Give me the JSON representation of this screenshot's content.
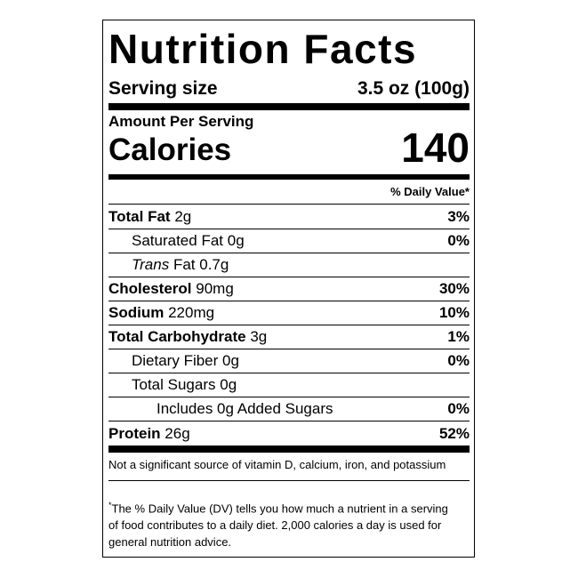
{
  "title": "Nutrition Facts",
  "serving": {
    "label": "Serving size",
    "value": "3.5 oz (100g)"
  },
  "calories": {
    "heading": "Amount Per Serving",
    "label": "Calories",
    "value": "140"
  },
  "dv_heading": "% Daily Value*",
  "rows": [
    {
      "label": "Total Fat",
      "amount": "2g",
      "dv": "3%"
    },
    {
      "label": "Saturated Fat",
      "amount": "0g",
      "dv": "0%"
    },
    {
      "label_italic": "Trans",
      "label": "Fat",
      "amount": "0.7g"
    },
    {
      "label": "Cholesterol",
      "amount": "90mg",
      "dv": "30%"
    },
    {
      "label": "Sodium",
      "amount": "220mg",
      "dv": "10%"
    },
    {
      "label": "Total Carbohydrate",
      "amount": "3g",
      "dv": "1%"
    },
    {
      "label": "Dietary Fiber",
      "amount": "0g",
      "dv": "0%"
    },
    {
      "label": "Total Sugars",
      "amount": "0g"
    },
    {
      "label": "Includes 0g Added Sugars",
      "dv": "0%"
    },
    {
      "label": "Protein",
      "amount": "26g",
      "dv": "52%"
    }
  ],
  "note": "Not a significant source of vitamin D, calcium, iron, and potassium",
  "footnote": {
    "marker": "*",
    "text": "The % Daily Value (DV) tells you how much a nutrient in a serving of food contributes to a daily diet. 2,000 calories a day is used for general nutrition advice."
  }
}
